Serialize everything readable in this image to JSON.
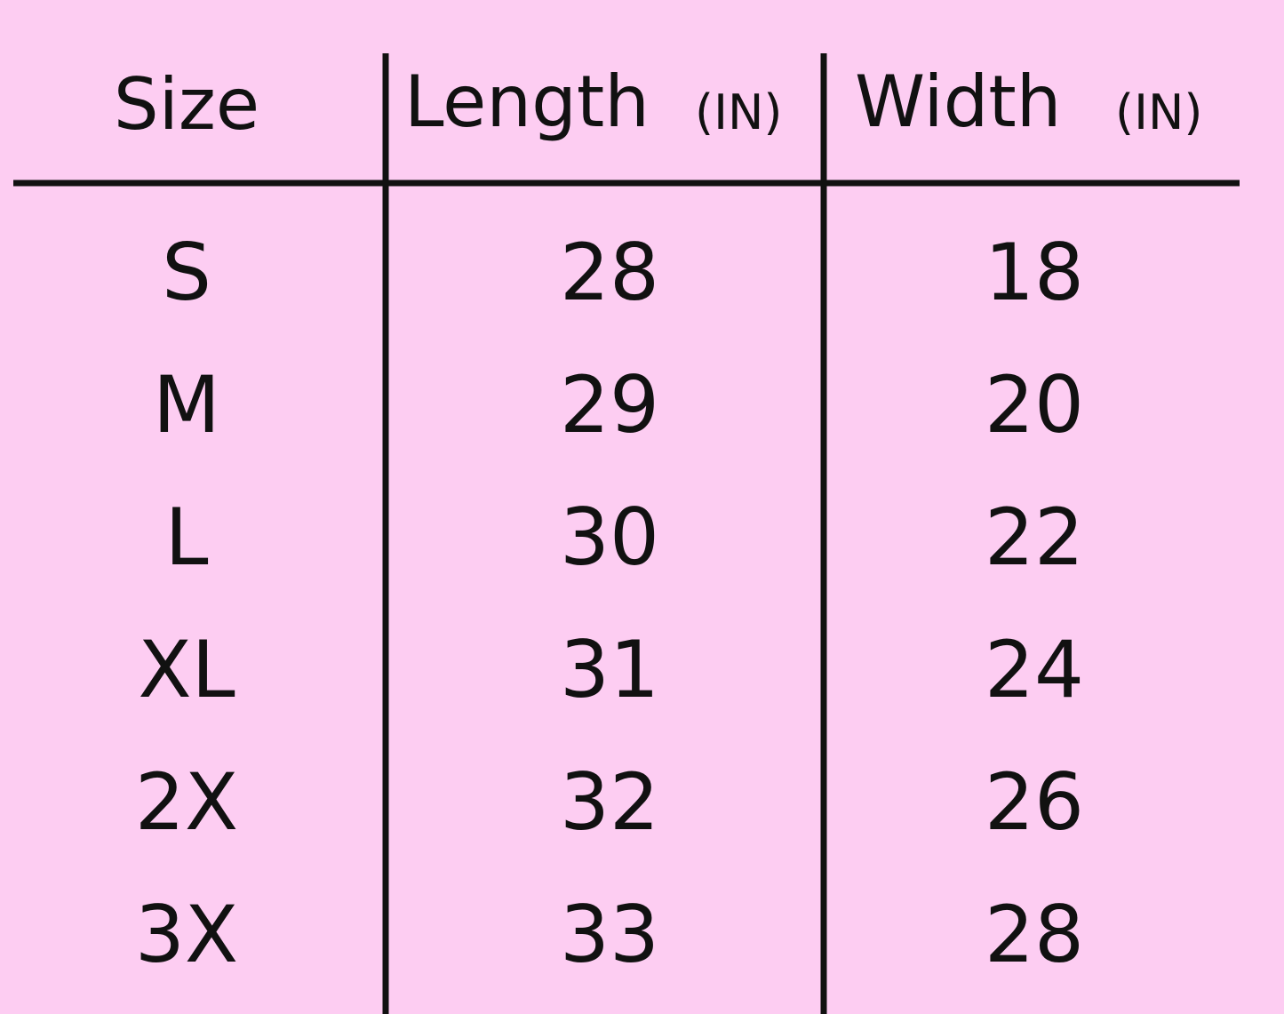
{
  "header": {
    "columns": [
      {
        "label": "Size"
      },
      {
        "label": "Length",
        "unit": "(IN)"
      },
      {
        "label": "Width",
        "unit": "(IN)"
      }
    ]
  },
  "table": {
    "rows": [
      [
        "S",
        28,
        18
      ],
      [
        "M",
        29,
        20
      ],
      [
        "L",
        30,
        22
      ],
      [
        "XL",
        31,
        24
      ],
      [
        "2X",
        32,
        26
      ],
      [
        "3X",
        33,
        28
      ]
    ]
  }
}
